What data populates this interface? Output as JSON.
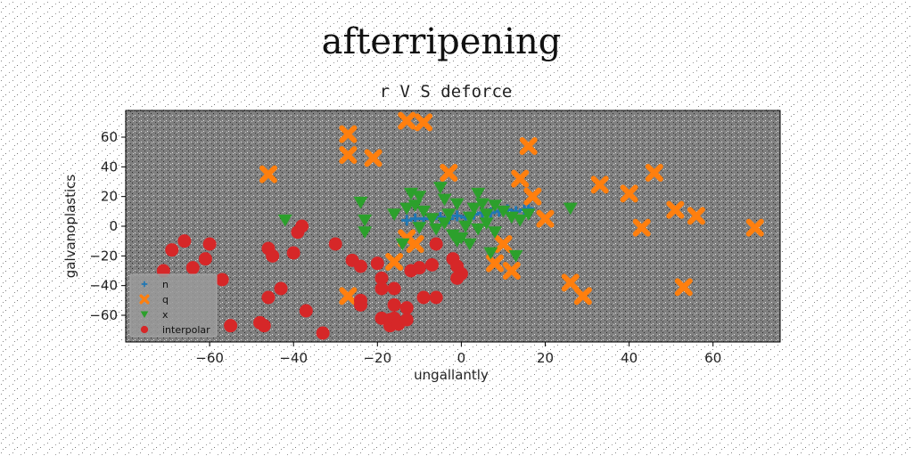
{
  "chart_data": {
    "type": "scatter",
    "title": "afterripening",
    "subtitle": "r V S deforce",
    "xlabel": "ungallantly",
    "ylabel": "galvanoplastics",
    "xlim": [
      -80,
      76
    ],
    "ylim": [
      -78,
      78
    ],
    "xticks": [
      -60,
      -40,
      -20,
      0,
      20,
      40,
      60
    ],
    "yticks": [
      60,
      40,
      20,
      0,
      -20,
      -40,
      -60
    ],
    "grid": false,
    "legend_position": "lower-left",
    "background": "#808080",
    "series": [
      {
        "name": "n",
        "marker": "plus",
        "color": "#1f77b4",
        "points": [
          [
            -13,
            4
          ],
          [
            -11,
            5
          ],
          [
            -9,
            5
          ],
          [
            -7,
            5
          ],
          [
            -5,
            6
          ],
          [
            -3,
            5
          ],
          [
            -1,
            7
          ],
          [
            1,
            6
          ],
          [
            3,
            8
          ],
          [
            5,
            9
          ],
          [
            7,
            9
          ],
          [
            9,
            10
          ],
          [
            11,
            11
          ],
          [
            13,
            10
          ],
          [
            15,
            11
          ],
          [
            16,
            12
          ]
        ]
      },
      {
        "name": "q",
        "marker": "x",
        "color": "#ff7f0e",
        "points": [
          [
            -13,
            71
          ],
          [
            -9,
            70
          ],
          [
            -27,
            62
          ],
          [
            -27,
            48
          ],
          [
            -21,
            46
          ],
          [
            -46,
            35
          ],
          [
            -3,
            36
          ],
          [
            16,
            54
          ],
          [
            14,
            32
          ],
          [
            17,
            20
          ],
          [
            20,
            5
          ],
          [
            33,
            28
          ],
          [
            40,
            22
          ],
          [
            46,
            36
          ],
          [
            43,
            -1
          ],
          [
            51,
            11
          ],
          [
            56,
            7
          ],
          [
            70,
            -1
          ],
          [
            -13,
            -8
          ],
          [
            -11,
            -12
          ],
          [
            10,
            -12
          ],
          [
            8,
            -25
          ],
          [
            12,
            -30
          ],
          [
            -16,
            -24
          ],
          [
            26,
            -38
          ],
          [
            29,
            -47
          ],
          [
            -27,
            -47
          ],
          [
            53,
            -41
          ]
        ]
      },
      {
        "name": "x",
        "marker": "triangle-down",
        "color": "#2ca02c",
        "points": [
          [
            -12,
            22
          ],
          [
            -10,
            20
          ],
          [
            -5,
            26
          ],
          [
            -4,
            18
          ],
          [
            -1,
            15
          ],
          [
            4,
            22
          ],
          [
            5,
            15
          ],
          [
            3,
            12
          ],
          [
            8,
            14
          ],
          [
            6,
            8
          ],
          [
            10,
            10
          ],
          [
            12,
            6
          ],
          [
            14,
            4
          ],
          [
            16,
            8
          ],
          [
            -16,
            8
          ],
          [
            -13,
            12
          ],
          [
            -11,
            14
          ],
          [
            -9,
            10
          ],
          [
            -7,
            5
          ],
          [
            -6,
            -2
          ],
          [
            -4,
            2
          ],
          [
            -3,
            8
          ],
          [
            -2,
            -6
          ],
          [
            0,
            -8
          ],
          [
            1,
            0
          ],
          [
            2,
            6
          ],
          [
            4,
            -2
          ],
          [
            6,
            2
          ],
          [
            8,
            -4
          ],
          [
            -24,
            16
          ],
          [
            -23,
            4
          ],
          [
            -23,
            -4
          ],
          [
            -42,
            4
          ],
          [
            -14,
            -12
          ],
          [
            7,
            -18
          ],
          [
            13,
            -20
          ],
          [
            26,
            12
          ],
          [
            -10,
            -1
          ],
          [
            -1,
            -10
          ],
          [
            2,
            -12
          ]
        ]
      },
      {
        "name": "interpolar",
        "marker": "circle",
        "color": "#d62728",
        "points": [
          [
            -71,
            -30
          ],
          [
            -69,
            -16
          ],
          [
            -66,
            -10
          ],
          [
            -64,
            -28
          ],
          [
            -60,
            -12
          ],
          [
            -61,
            -22
          ],
          [
            -57,
            -36
          ],
          [
            -55,
            -67
          ],
          [
            -48,
            -65
          ],
          [
            -47,
            -67
          ],
          [
            -46,
            -48
          ],
          [
            -46,
            -15
          ],
          [
            -45,
            -20
          ],
          [
            -43,
            -42
          ],
          [
            -40,
            -18
          ],
          [
            -39,
            -4
          ],
          [
            -38,
            0
          ],
          [
            -37,
            -57
          ],
          [
            -33,
            -72
          ],
          [
            -30,
            -12
          ],
          [
            -26,
            -23
          ],
          [
            -24,
            -27
          ],
          [
            -24,
            -50
          ],
          [
            -24,
            -53
          ],
          [
            -20,
            -25
          ],
          [
            -19,
            -35
          ],
          [
            -19,
            -42
          ],
          [
            -16,
            -42
          ],
          [
            -16,
            -53
          ],
          [
            -19,
            -62
          ],
          [
            -17,
            -63
          ],
          [
            -17,
            -67
          ],
          [
            -16,
            -62
          ],
          [
            -15,
            -66
          ],
          [
            -13,
            -55
          ],
          [
            -13,
            -63
          ],
          [
            -12,
            -30
          ],
          [
            -10,
            -28
          ],
          [
            -9,
            -48
          ],
          [
            -7,
            -26
          ],
          [
            -6,
            -48
          ],
          [
            -6,
            -12
          ],
          [
            -2,
            -22
          ],
          [
            -1,
            -27
          ],
          [
            0,
            -32
          ],
          [
            -1,
            -35
          ]
        ]
      }
    ]
  }
}
